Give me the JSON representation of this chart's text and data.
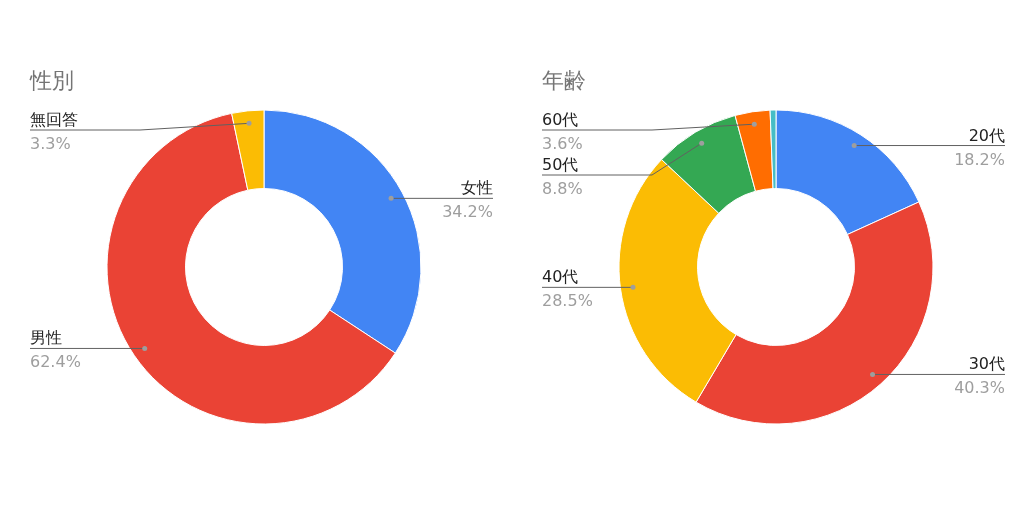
{
  "chart_data": [
    {
      "type": "donut",
      "title": "性別",
      "categories": [
        "女性",
        "男性",
        "無回答"
      ],
      "values": [
        34.2,
        62.4,
        3.3
      ],
      "colors": [
        "#4285f4",
        "#ea4335",
        "#fbbc04"
      ],
      "value_labels": [
        "34.2%",
        "62.4%",
        "3.3%"
      ]
    },
    {
      "type": "donut",
      "title": "年齢",
      "categories": [
        "20代",
        "30代",
        "40代",
        "50代",
        "60代",
        null
      ],
      "values": [
        18.2,
        40.3,
        28.5,
        8.8,
        3.6,
        0.6
      ],
      "colors": [
        "#4285f4",
        "#ea4335",
        "#fbbc04",
        "#34a853",
        "#ff6d01",
        "#46bdc6"
      ],
      "value_labels": [
        "18.2%",
        "40.3%",
        "28.5%",
        "8.8%",
        "3.6%",
        null
      ]
    }
  ]
}
